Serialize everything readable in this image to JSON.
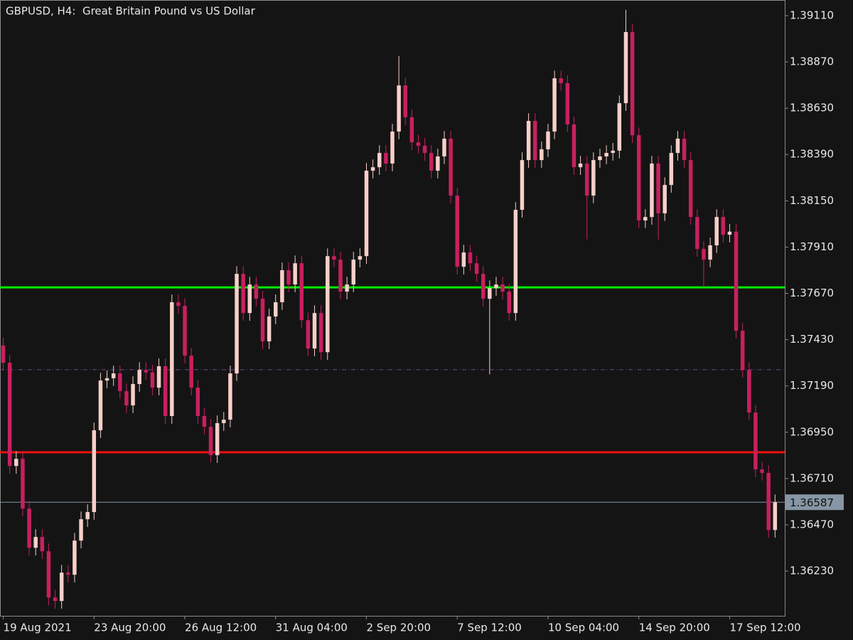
{
  "chart_data": {
    "type": "candlestick",
    "title": "GBPUSD, H4:  Great Britain Pound vs US Dollar",
    "bull_color": "#f8cfc9",
    "bear_color": "#c8205e",
    "open": [
      1.374,
      1.3731,
      1.36775,
      1.36812,
      1.36554,
      1.36351,
      1.36407,
      1.36333,
      1.36093,
      1.36075,
      1.36222,
      1.36211,
      1.36388,
      1.36499,
      1.36536,
      1.3696,
      1.37218,
      1.3723,
      1.37255,
      1.37163,
      1.37089,
      1.372,
      1.37273,
      1.3726,
      1.37181,
      1.37292,
      1.37034,
      1.37624,
      1.37605,
      1.37347,
      1.37181,
      1.37034,
      1.36978,
      1.36831,
      1.36997,
      1.37015,
      1.37255,
      1.37771,
      1.37568,
      1.37716,
      1.37642,
      1.37421,
      1.3755,
      1.37624,
      1.3779,
      1.37716,
      1.37826,
      1.37531,
      1.37384,
      1.37568,
      1.37365,
      1.37863,
      1.37845,
      1.37679,
      1.37716,
      1.37845,
      1.37863,
      1.38306,
      1.38324,
      1.38398,
      1.38343,
      1.38509,
      1.38748,
      1.38583,
      1.38453,
      1.38435,
      1.38398,
      1.38306,
      1.3838,
      1.38472,
      1.38177,
      1.37808,
      1.37882,
      1.37826,
      1.37771,
      1.37642,
      1.37697,
      1.37716,
      1.37679,
      1.37568,
      1.38103,
      1.38361,
      1.38564,
      1.38361,
      1.38417,
      1.38509,
      1.38785,
      1.3876,
      1.38546,
      1.38324,
      1.38343,
      1.38177,
      1.38361,
      1.3838,
      1.38398,
      1.3841,
      1.38656,
      1.39025,
      1.3849,
      1.38048,
      1.38066,
      1.38343,
      1.38085,
      1.38232,
      1.38398,
      1.38472,
      1.38361,
      1.38066,
      1.379,
      1.37845,
      1.37919,
      1.38066,
      1.37974,
      1.3799,
      1.37476,
      1.37273,
      1.37052,
      1.36757,
      1.36739,
      1.36443
    ],
    "high": [
      1.3744,
      1.3735,
      1.36852,
      1.36852,
      1.36594,
      1.36447,
      1.36447,
      1.36373,
      1.36133,
      1.36262,
      1.36262,
      1.36428,
      1.36539,
      1.36576,
      1.37,
      1.37258,
      1.3727,
      1.37295,
      1.37295,
      1.37203,
      1.3724,
      1.37313,
      1.37313,
      1.373,
      1.37332,
      1.37332,
      1.37664,
      1.37664,
      1.37645,
      1.37387,
      1.37221,
      1.37074,
      1.37018,
      1.37037,
      1.37055,
      1.37295,
      1.37811,
      1.37811,
      1.37756,
      1.37756,
      1.37682,
      1.3759,
      1.37664,
      1.3783,
      1.3783,
      1.37866,
      1.37866,
      1.37571,
      1.37608,
      1.37608,
      1.37903,
      1.37903,
      1.37885,
      1.37756,
      1.37885,
      1.37903,
      1.38346,
      1.38364,
      1.38438,
      1.38438,
      1.38549,
      1.389,
      1.38788,
      1.38623,
      1.38493,
      1.38475,
      1.38438,
      1.3842,
      1.38512,
      1.38512,
      1.38217,
      1.37922,
      1.37922,
      1.37866,
      1.37811,
      1.37737,
      1.37756,
      1.37756,
      1.37719,
      1.38143,
      1.38401,
      1.38604,
      1.38604,
      1.38457,
      1.38549,
      1.38825,
      1.38825,
      1.388,
      1.38586,
      1.38383,
      1.38383,
      1.38401,
      1.3842,
      1.38438,
      1.3845,
      1.38696,
      1.3914,
      1.39065,
      1.3853,
      1.38106,
      1.38383,
      1.38383,
      1.38272,
      1.38438,
      1.38512,
      1.38512,
      1.38401,
      1.38106,
      1.3794,
      1.37959,
      1.38106,
      1.38106,
      1.3803,
      1.3803,
      1.37516,
      1.37313,
      1.37092,
      1.36797,
      1.36779,
      1.36627
    ],
    "low": [
      1.3727,
      1.36735,
      1.36735,
      1.36514,
      1.36311,
      1.36311,
      1.36293,
      1.36053,
      1.36035,
      1.36035,
      1.36171,
      1.36171,
      1.36348,
      1.36459,
      1.36496,
      1.3692,
      1.37178,
      1.3719,
      1.37123,
      1.37049,
      1.37049,
      1.3716,
      1.3722,
      1.37141,
      1.37141,
      1.36994,
      1.36994,
      1.37565,
      1.37307,
      1.37141,
      1.36994,
      1.36938,
      1.36791,
      1.36791,
      1.36957,
      1.36975,
      1.37215,
      1.37528,
      1.37528,
      1.37602,
      1.37381,
      1.37381,
      1.3751,
      1.37584,
      1.37676,
      1.37676,
      1.37491,
      1.37344,
      1.37344,
      1.37325,
      1.37325,
      1.37805,
      1.37639,
      1.37639,
      1.37676,
      1.37805,
      1.37823,
      1.38266,
      1.38284,
      1.38303,
      1.38303,
      1.38469,
      1.38543,
      1.38413,
      1.38395,
      1.38358,
      1.38266,
      1.38266,
      1.3834,
      1.38137,
      1.37768,
      1.37768,
      1.37786,
      1.37731,
      1.37602,
      1.3725,
      1.37657,
      1.37639,
      1.37528,
      1.37528,
      1.38063,
      1.38321,
      1.38321,
      1.38321,
      1.38377,
      1.38469,
      1.3872,
      1.38506,
      1.38284,
      1.38284,
      1.3795,
      1.38137,
      1.38321,
      1.3834,
      1.38358,
      1.3837,
      1.38616,
      1.3845,
      1.38008,
      1.38008,
      1.38026,
      1.3795,
      1.38045,
      1.38192,
      1.38358,
      1.38321,
      1.38026,
      1.3786,
      1.377,
      1.37805,
      1.37879,
      1.37934,
      1.37934,
      1.37436,
      1.37233,
      1.37012,
      1.36717,
      1.36699,
      1.36403,
      1.36403
    ],
    "close": [
      1.3731,
      1.36775,
      1.36812,
      1.36554,
      1.36351,
      1.36407,
      1.36333,
      1.36093,
      1.36075,
      1.36222,
      1.36211,
      1.36388,
      1.36499,
      1.36536,
      1.3696,
      1.37218,
      1.3723,
      1.37255,
      1.37163,
      1.37089,
      1.372,
      1.37273,
      1.3726,
      1.37181,
      1.37292,
      1.37034,
      1.37624,
      1.37605,
      1.37347,
      1.37181,
      1.37034,
      1.36978,
      1.36831,
      1.36997,
      1.37015,
      1.37255,
      1.37771,
      1.37568,
      1.37716,
      1.37642,
      1.37421,
      1.3755,
      1.37624,
      1.3779,
      1.37716,
      1.37826,
      1.37531,
      1.37384,
      1.37568,
      1.37365,
      1.37863,
      1.37845,
      1.37679,
      1.37716,
      1.37845,
      1.37863,
      1.38306,
      1.38324,
      1.38398,
      1.38343,
      1.38509,
      1.38748,
      1.38583,
      1.38453,
      1.38435,
      1.38398,
      1.38306,
      1.3838,
      1.38472,
      1.38177,
      1.37808,
      1.37882,
      1.37826,
      1.37771,
      1.37642,
      1.37697,
      1.37716,
      1.37679,
      1.37568,
      1.38103,
      1.38361,
      1.38564,
      1.38361,
      1.38417,
      1.38509,
      1.38785,
      1.3876,
      1.38546,
      1.38324,
      1.38343,
      1.38177,
      1.38361,
      1.3838,
      1.38398,
      1.3841,
      1.38656,
      1.39025,
      1.3849,
      1.38048,
      1.38066,
      1.38343,
      1.38085,
      1.38232,
      1.38398,
      1.38472,
      1.38361,
      1.38066,
      1.379,
      1.37845,
      1.37919,
      1.38066,
      1.37974,
      1.3799,
      1.37476,
      1.37273,
      1.37052,
      1.36757,
      1.36739,
      1.36443,
      1.36587
    ],
    "xlim": [
      -0.5,
      120.5
    ],
    "xticks": [
      {
        "value": 0,
        "label": "19 Aug 2021"
      },
      {
        "value": 14,
        "label": "23 Aug 20:00"
      },
      {
        "value": 28,
        "label": "26 Aug 12:00"
      },
      {
        "value": 42,
        "label": "31 Aug 04:00"
      },
      {
        "value": 56,
        "label": "2 Sep 20:00"
      },
      {
        "value": 70,
        "label": "7 Sep 12:00"
      },
      {
        "value": 84,
        "label": "10 Sep 04:00"
      },
      {
        "value": 98,
        "label": "14 Sep 20:00"
      },
      {
        "value": 112,
        "label": "17 Sep 12:00"
      }
    ],
    "ylim": [
      1.35998,
      1.39191
    ],
    "yticks": [
      {
        "value": 1.3911,
        "label": "1.39110"
      },
      {
        "value": 1.3887,
        "label": "1.38870"
      },
      {
        "value": 1.3863,
        "label": "1.38630"
      },
      {
        "value": 1.3839,
        "label": "1.38390"
      },
      {
        "value": 1.3815,
        "label": "1.38150"
      },
      {
        "value": 1.3791,
        "label": "1.37910"
      },
      {
        "value": 1.3767,
        "label": "1.37670"
      },
      {
        "value": 1.3743,
        "label": "1.37430"
      },
      {
        "value": 1.3719,
        "label": "1.37190"
      },
      {
        "value": 1.3695,
        "label": "1.36950"
      },
      {
        "value": 1.3671,
        "label": "1.36710"
      },
      {
        "value": 1.3647,
        "label": "1.36470"
      },
      {
        "value": 1.3623,
        "label": "1.36230"
      }
    ],
    "levels": [
      {
        "value": 1.37701,
        "color": "#00ee00",
        "style": "solid"
      },
      {
        "value": 1.36846,
        "color": "#ee1111",
        "style": "solid"
      },
      {
        "value": 1.37274,
        "color": "#6a4a8c",
        "style": "dashed"
      }
    ],
    "last_price": 1.36587,
    "last_price_color": "#8796a5"
  }
}
